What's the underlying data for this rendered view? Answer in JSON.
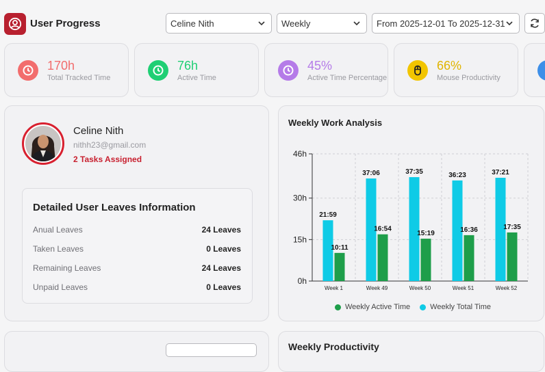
{
  "header": {
    "title": "User Progress",
    "user_select": "Celine Nith",
    "period_select": "Weekly",
    "range_select": "From 2025-12-01 To 2025-12-31"
  },
  "stats": [
    {
      "value": "170h",
      "label": "Total Tracked Time",
      "color": "#f26d6d",
      "icon": "clock-icon"
    },
    {
      "value": "76h",
      "label": "Active Time",
      "color": "#1fcf74",
      "icon": "clock-icon"
    },
    {
      "value": "45%",
      "label": "Active Time Percentage",
      "color": "#b57be8",
      "icon": "clock-icon"
    },
    {
      "value": "66%",
      "label": "Mouse Productivity",
      "color": "#f2c500",
      "icon": "mouse-icon"
    }
  ],
  "profile": {
    "name": "Celine Nith",
    "email": "nithh23@gmail.com",
    "tasks": "2 Tasks Assigned"
  },
  "leaves": {
    "title": "Detailed User Leaves Information",
    "rows": [
      {
        "label": "Anual Leaves",
        "value": "24 Leaves"
      },
      {
        "label": "Taken Leaves",
        "value": "0 Leaves"
      },
      {
        "label": "Remaining Leaves",
        "value": "24 Leaves"
      },
      {
        "label": "Unpaid Leaves",
        "value": "0 Leaves"
      }
    ]
  },
  "chart": {
    "title": "Weekly Work Analysis",
    "legend_active": "Weekly Active Time",
    "legend_total": "Weekly Total Time",
    "active_color": "#1e9e4a",
    "total_color": "#0fcbe6"
  },
  "chart_data": {
    "type": "bar",
    "title": "Weekly Work Analysis",
    "categories": [
      "Week 1",
      "Week 49",
      "Week 50",
      "Week 51",
      "Week 52"
    ],
    "yticks": [
      "0h",
      "15h",
      "30h",
      "46h"
    ],
    "ytick_values": [
      0,
      15,
      30,
      46
    ],
    "ylim": [
      0,
      46
    ],
    "grid": true,
    "legend": "bottom",
    "series": [
      {
        "name": "Weekly Total Time",
        "values": [
          21.98,
          37.1,
          37.58,
          36.38,
          37.35
        ],
        "labels": [
          "21:59",
          "37:06",
          "37:35",
          "36:23",
          "37:21"
        ]
      },
      {
        "name": "Weekly Active Time",
        "values": [
          10.18,
          16.9,
          15.32,
          16.6,
          17.58
        ],
        "labels": [
          "10:11",
          "16:54",
          "15:19",
          "16:36",
          "17:35"
        ]
      }
    ]
  },
  "bottom": {
    "productivity_title": "Weekly Productivity"
  }
}
